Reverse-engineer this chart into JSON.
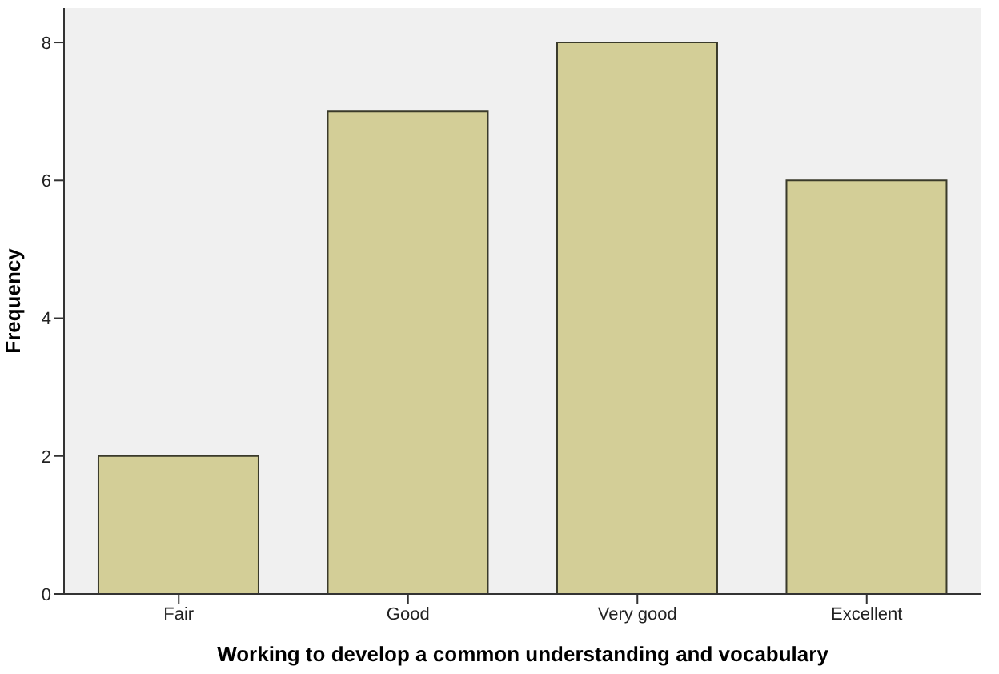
{
  "chart_data": {
    "type": "bar",
    "xlabel": "Working to develop a common understanding and vocabulary",
    "ylabel": "Frequency",
    "categories": [
      "Fair",
      "Good",
      "Very good",
      "Excellent"
    ],
    "values": [
      2,
      7,
      8,
      6
    ],
    "color": "#d3ce97",
    "ylim": [
      0,
      8.5
    ],
    "yticks": [
      0,
      2,
      4,
      6,
      8
    ],
    "grid": false
  }
}
